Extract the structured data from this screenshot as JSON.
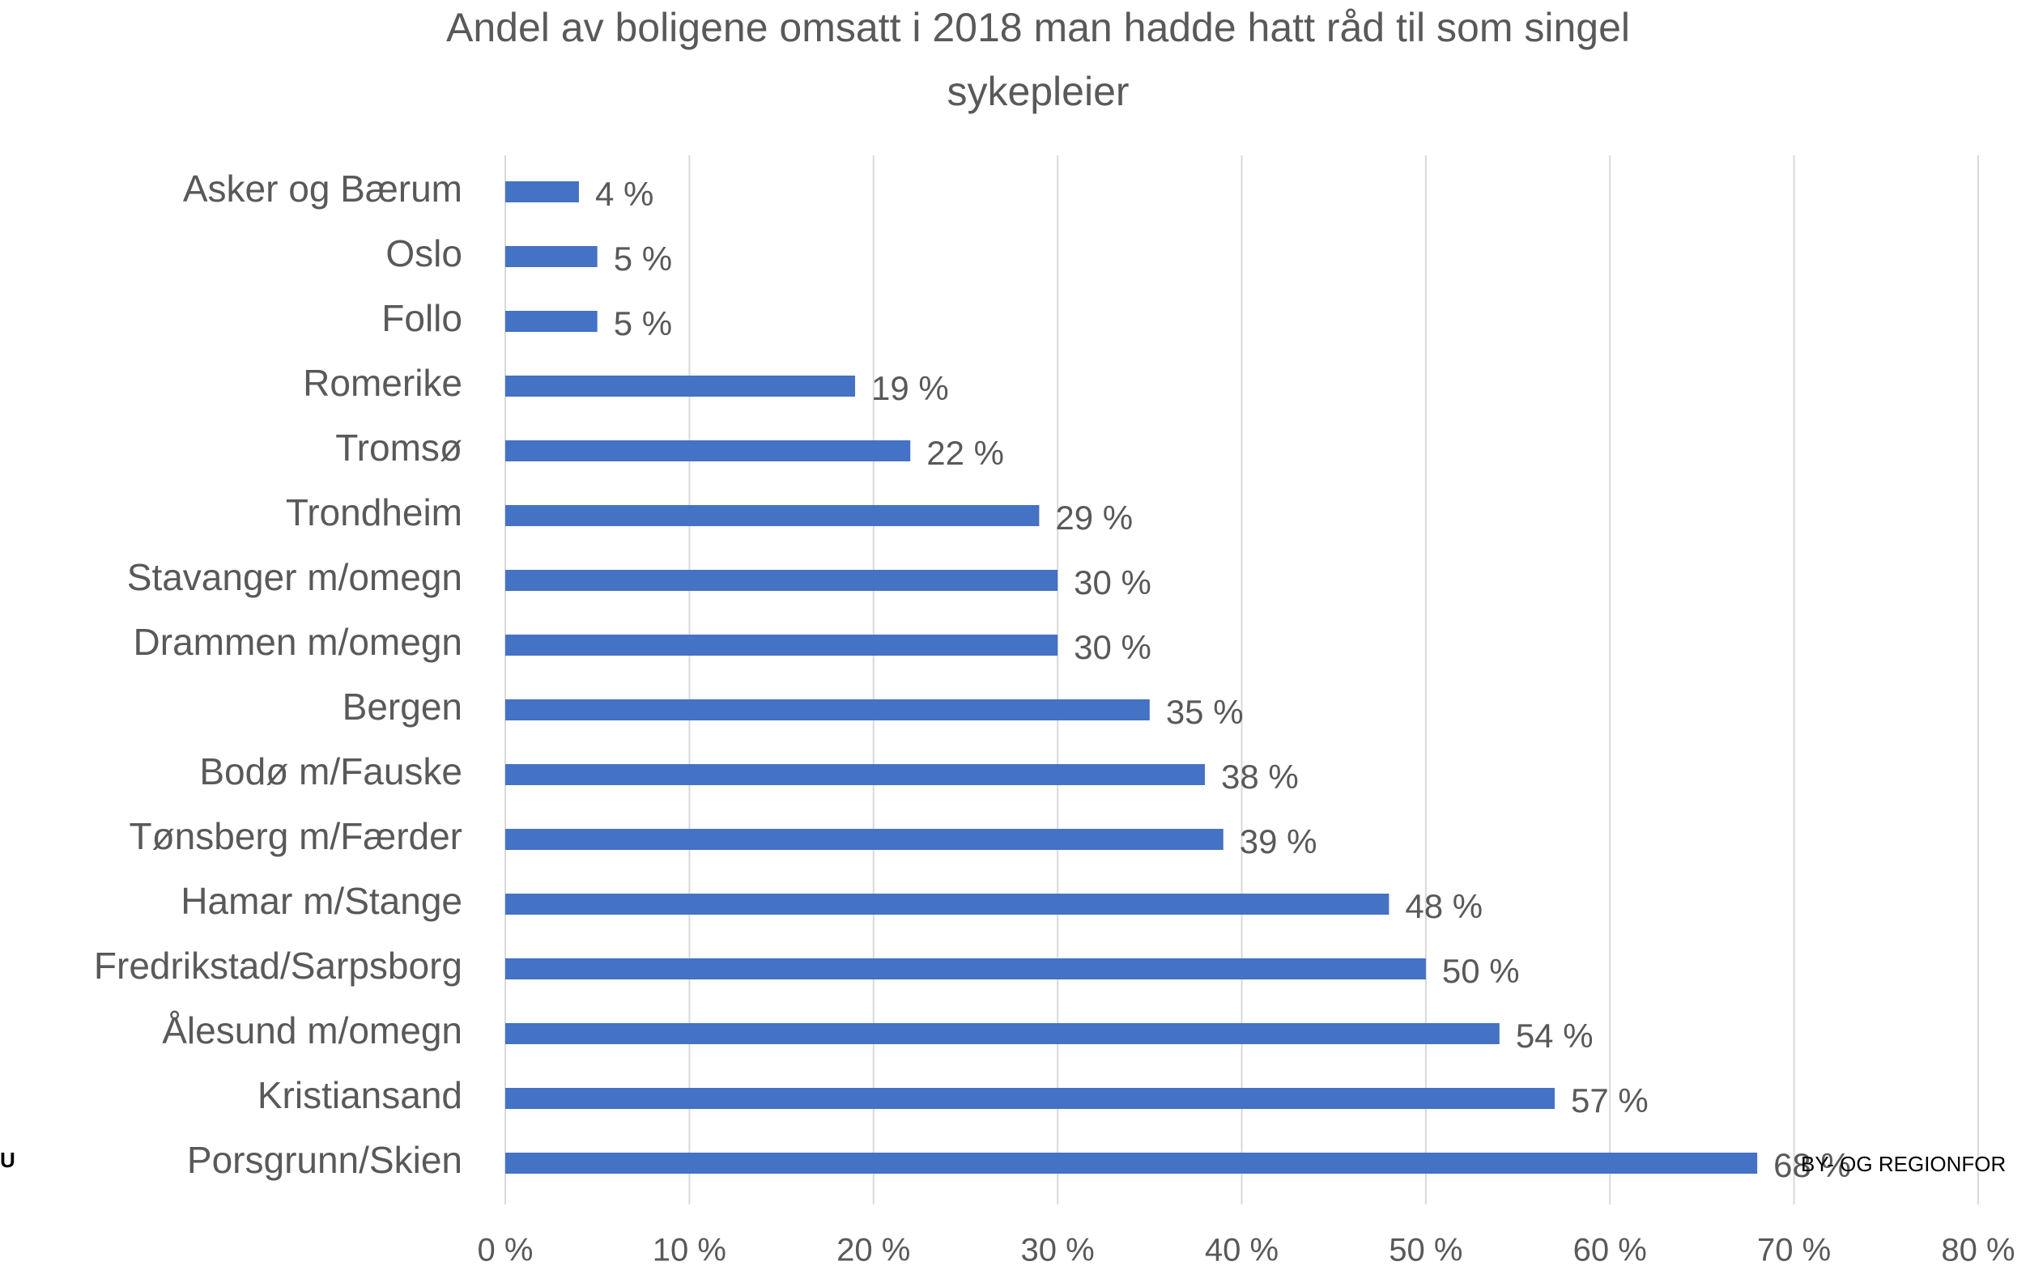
{
  "chart_data": {
    "type": "bar",
    "orientation": "horizontal",
    "title": [
      "Andel av boligene omsatt i 2018 man hadde hatt råd til som singel",
      "sykepleier"
    ],
    "categories": [
      "Asker og Bærum",
      "Oslo",
      "Follo",
      "Romerike",
      "Tromsø",
      "Trondheim",
      "Stavanger m/omegn",
      "Drammen m/omegn",
      "Bergen",
      "Bodø m/Fauske",
      "Tønsberg m/Færder",
      "Hamar m/Stange",
      "Fredrikstad/Sarpsborg",
      "Ålesund m/omegn",
      "Kristiansand",
      "Porsgrunn/Skien"
    ],
    "values": [
      4,
      5,
      5,
      19,
      22,
      29,
      30,
      30,
      35,
      38,
      39,
      48,
      50,
      54,
      57,
      68
    ],
    "value_labels": [
      "4 %",
      "5 %",
      "5 %",
      "19 %",
      "22 %",
      "29 %",
      "30 %",
      "30 %",
      "35 %",
      "38 %",
      "39 %",
      "48 %",
      "50 %",
      "54 %",
      "57 %",
      "68 %"
    ],
    "color": "#4472c4",
    "xlim": [
      0,
      80
    ],
    "xticks": [
      {
        "value": 0,
        "label": "0 %"
      },
      {
        "value": 10,
        "label": "10 %"
      },
      {
        "value": 20,
        "label": "20 %"
      },
      {
        "value": 30,
        "label": "30 %"
      },
      {
        "value": 40,
        "label": "40 %"
      },
      {
        "value": 50,
        "label": "50 %"
      },
      {
        "value": 60,
        "label": "60 %"
      },
      {
        "value": 70,
        "label": "70 %"
      },
      {
        "value": 80,
        "label": "80 %"
      }
    ],
    "grid": true,
    "annotations": [
      "U",
      "BY- OG REGIONFOR"
    ]
  }
}
